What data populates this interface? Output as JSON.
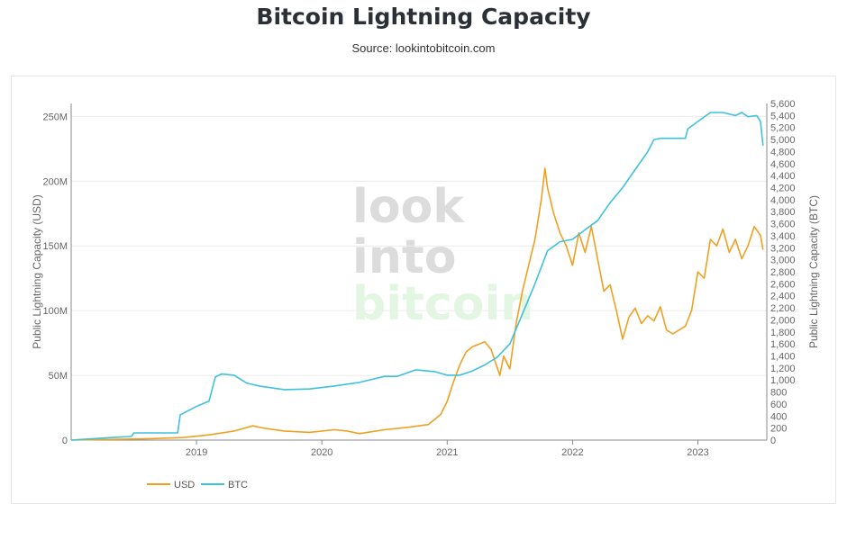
{
  "header": {
    "title": "Bitcoin Lightning Capacity",
    "source": "Source: lookintobitcoin.com"
  },
  "watermark": {
    "line1": "look",
    "line2": "into",
    "line3": "bitcoin"
  },
  "colors": {
    "usd": "#f0a020",
    "btc": "#3ec1dc",
    "grid": "#ececec",
    "axis": "#888888",
    "wm_gray": "#dcdcdc",
    "wm_green": "#e2f6e2"
  },
  "chart_data": {
    "type": "line",
    "title": "Bitcoin Lightning Capacity",
    "xlabel": "",
    "x_range": [
      2018.0,
      2023.55
    ],
    "x_ticks": [
      2019,
      2020,
      2021,
      2022,
      2023
    ],
    "x_tick_labels": [
      "2019",
      "2020",
      "2021",
      "2022",
      "2023"
    ],
    "y_left": {
      "label": "Public Lightning Capacity (USD)",
      "range": [
        0,
        260000000
      ],
      "ticks": [
        0,
        50000000,
        100000000,
        150000000,
        200000000,
        250000000
      ],
      "tick_labels": [
        "0",
        "50M",
        "100M",
        "150M",
        "200M",
        "250M"
      ]
    },
    "y_right": {
      "label": "Public Lightning Capacity (BTC)",
      "range": [
        0,
        5600
      ],
      "ticks": [
        0,
        200,
        400,
        600,
        800,
        1000,
        1200,
        1400,
        1600,
        1800,
        2000,
        2200,
        2400,
        2600,
        2800,
        3000,
        3200,
        3400,
        3600,
        3800,
        4000,
        4200,
        4400,
        4600,
        4800,
        5000,
        5200,
        5400,
        5600
      ],
      "tick_labels": [
        "0",
        "200",
        "400",
        "600",
        "800",
        "1,000",
        "1,200",
        "1,400",
        "1,600",
        "1,800",
        "2,000",
        "2,200",
        "2,400",
        "2,600",
        "2,800",
        "3,000",
        "3,200",
        "3,400",
        "3,600",
        "3,800",
        "4,000",
        "4,200",
        "4,400",
        "4,600",
        "4,800",
        "5,000",
        "5,200",
        "5,400",
        "5,600"
      ]
    },
    "legend": {
      "position": "bottom-left"
    },
    "series": [
      {
        "name": "USD",
        "axis": "left",
        "x": [
          2018.0,
          2018.3,
          2018.6,
          2018.9,
          2019.1,
          2019.3,
          2019.45,
          2019.55,
          2019.7,
          2019.9,
          2020.1,
          2020.2,
          2020.3,
          2020.5,
          2020.7,
          2020.85,
          2020.95,
          2021.0,
          2021.05,
          2021.1,
          2021.15,
          2021.2,
          2021.3,
          2021.35,
          2021.42,
          2021.45,
          2021.5,
          2021.55,
          2021.6,
          2021.65,
          2021.7,
          2021.75,
          2021.78,
          2021.8,
          2021.85,
          2021.9,
          2021.95,
          2022.0,
          2022.05,
          2022.1,
          2022.15,
          2022.2,
          2022.25,
          2022.3,
          2022.35,
          2022.4,
          2022.45,
          2022.5,
          2022.55,
          2022.6,
          2022.65,
          2022.7,
          2022.75,
          2022.8,
          2022.9,
          2022.95,
          2023.0,
          2023.05,
          2023.1,
          2023.15,
          2023.2,
          2023.25,
          2023.3,
          2023.35,
          2023.4,
          2023.45,
          2023.5,
          2023.52
        ],
        "values": [
          0,
          500000,
          1000000,
          2000000,
          4000000,
          7000000,
          11000000,
          9000000,
          7000000,
          6000000,
          8000000,
          7000000,
          5000000,
          8000000,
          10000000,
          12000000,
          20000000,
          30000000,
          45000000,
          58000000,
          68000000,
          72000000,
          76000000,
          70000000,
          50000000,
          65000000,
          55000000,
          90000000,
          115000000,
          135000000,
          155000000,
          185000000,
          210000000,
          195000000,
          175000000,
          160000000,
          150000000,
          135000000,
          160000000,
          145000000,
          165000000,
          140000000,
          115000000,
          120000000,
          100000000,
          78000000,
          95000000,
          102000000,
          90000000,
          96000000,
          92000000,
          103000000,
          85000000,
          82000000,
          88000000,
          100000000,
          130000000,
          125000000,
          155000000,
          150000000,
          163000000,
          145000000,
          155000000,
          140000000,
          150000000,
          165000000,
          158000000,
          147000000
        ]
      },
      {
        "name": "BTC",
        "axis": "right",
        "x": [
          2018.0,
          2018.3,
          2018.48,
          2018.5,
          2018.85,
          2018.87,
          2019.0,
          2019.1,
          2019.15,
          2019.2,
          2019.3,
          2019.4,
          2019.5,
          2019.7,
          2019.9,
          2020.1,
          2020.3,
          2020.5,
          2020.6,
          2020.75,
          2020.9,
          2021.0,
          2021.1,
          2021.2,
          2021.3,
          2021.4,
          2021.5,
          2021.6,
          2021.7,
          2021.8,
          2021.9,
          2022.0,
          2022.1,
          2022.2,
          2022.3,
          2022.4,
          2022.5,
          2022.6,
          2022.65,
          2022.7,
          2022.8,
          2022.9,
          2022.92,
          2023.0,
          2023.1,
          2023.2,
          2023.3,
          2023.35,
          2023.4,
          2023.47,
          2023.5,
          2023.52
        ],
        "values": [
          0,
          40,
          60,
          120,
          120,
          420,
          560,
          650,
          1050,
          1100,
          1080,
          950,
          900,
          840,
          850,
          900,
          960,
          1060,
          1060,
          1170,
          1140,
          1080,
          1080,
          1150,
          1250,
          1380,
          1600,
          2100,
          2600,
          3150,
          3300,
          3340,
          3500,
          3650,
          3950,
          4200,
          4500,
          4800,
          5000,
          5020,
          5020,
          5020,
          5180,
          5300,
          5450,
          5450,
          5400,
          5450,
          5380,
          5400,
          5300,
          4900
        ]
      }
    ]
  }
}
